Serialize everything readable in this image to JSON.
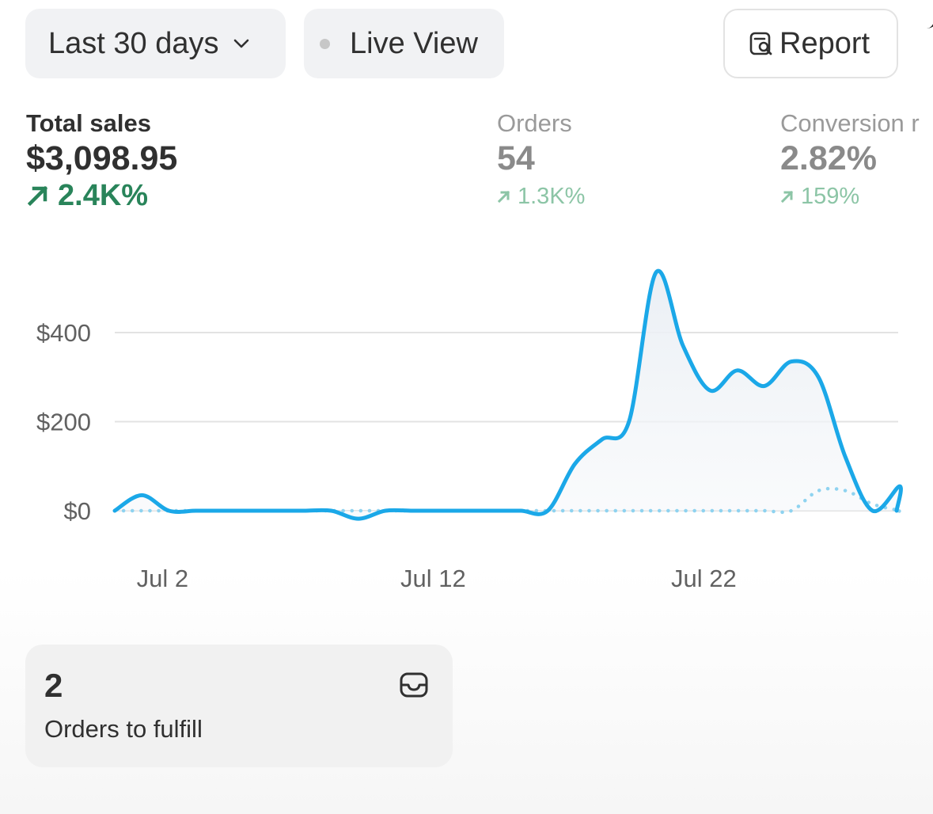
{
  "toolbar": {
    "range_label": "Last 30 days",
    "live_label": "Live View",
    "report_label": "Report"
  },
  "metrics": {
    "total_sales": {
      "label": "Total sales",
      "value": "$3,098.95",
      "delta": "2.4K%"
    },
    "orders": {
      "label": "Orders",
      "value": "54",
      "delta": "1.3K%"
    },
    "conversion": {
      "label": "Conversion r",
      "value": "2.82%",
      "delta": "159%"
    }
  },
  "chart_data": {
    "type": "line",
    "x_ticks": [
      "Jul 2",
      "Jul 12",
      "Jul 22"
    ],
    "y_ticks": [
      "$400",
      "$200",
      "$0"
    ],
    "ylim": [
      0,
      400
    ],
    "series": [
      {
        "style": "solid",
        "color": "#1ba8e8",
        "x": [
          "Jun 30",
          "Jul 1",
          "Jul 2",
          "Jul 3",
          "Jul 4",
          "Jul 5",
          "Jul 6",
          "Jul 7",
          "Jul 8",
          "Jul 9",
          "Jul 10",
          "Jul 11",
          "Jul 12",
          "Jul 13",
          "Jul 14",
          "Jul 15",
          "Jul 16",
          "Jul 17",
          "Jul 18",
          "Jul 19",
          "Jul 20",
          "Jul 21",
          "Jul 22",
          "Jul 23",
          "Jul 24",
          "Jul 25",
          "Jul 26",
          "Jul 27",
          "Jul 28",
          "Jul 29"
        ],
        "values": [
          0,
          35,
          0,
          0,
          0,
          0,
          0,
          0,
          0,
          -18,
          0,
          0,
          0,
          0,
          0,
          0,
          0,
          105,
          160,
          200,
          535,
          370,
          270,
          315,
          280,
          335,
          300,
          120,
          0,
          55
        ]
      },
      {
        "style": "dotted",
        "color": "#8fd3f0",
        "values": [
          0,
          0,
          0,
          0,
          0,
          0,
          0,
          0,
          0,
          0,
          0,
          0,
          0,
          0,
          0,
          0,
          0,
          0,
          0,
          0,
          0,
          0,
          0,
          0,
          0,
          0,
          45,
          45,
          15,
          0
        ]
      }
    ]
  },
  "fulfill_card": {
    "count": "2",
    "label": "Orders to fulfill"
  },
  "icons": {
    "chevron": "chevron-down-icon",
    "live_dot": "status-dot-icon",
    "report": "report-search-icon",
    "trend": "arrow-up-right-icon",
    "inbox": "inbox-icon"
  }
}
